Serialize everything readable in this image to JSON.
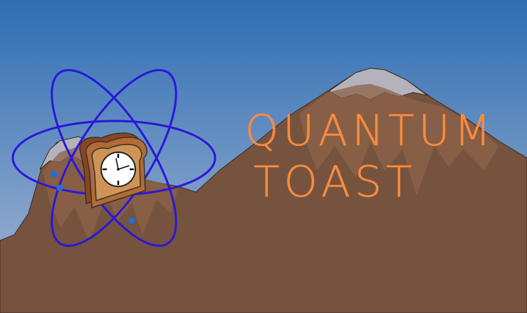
{
  "title": {
    "line1": "QUANTUM",
    "line2": "TOAST"
  },
  "colors": {
    "sky_top": "#2e6db3",
    "sky_bottom": "#a9b9d4",
    "mountain": "#76533f",
    "mountain_light": "#8e6149",
    "snow": "#b4b3bd",
    "title": "#fb8b3c",
    "orbit": "#2a18d8",
    "electron": "#1f6fe0",
    "toast_crust": "#a0552a",
    "toast_face": "#c98a4b",
    "clock_face": "#ffffff",
    "outline": "#333333"
  },
  "icons": {
    "atom": "atom-orbits-icon",
    "toast": "toast-icon",
    "clock": "clock-icon"
  }
}
